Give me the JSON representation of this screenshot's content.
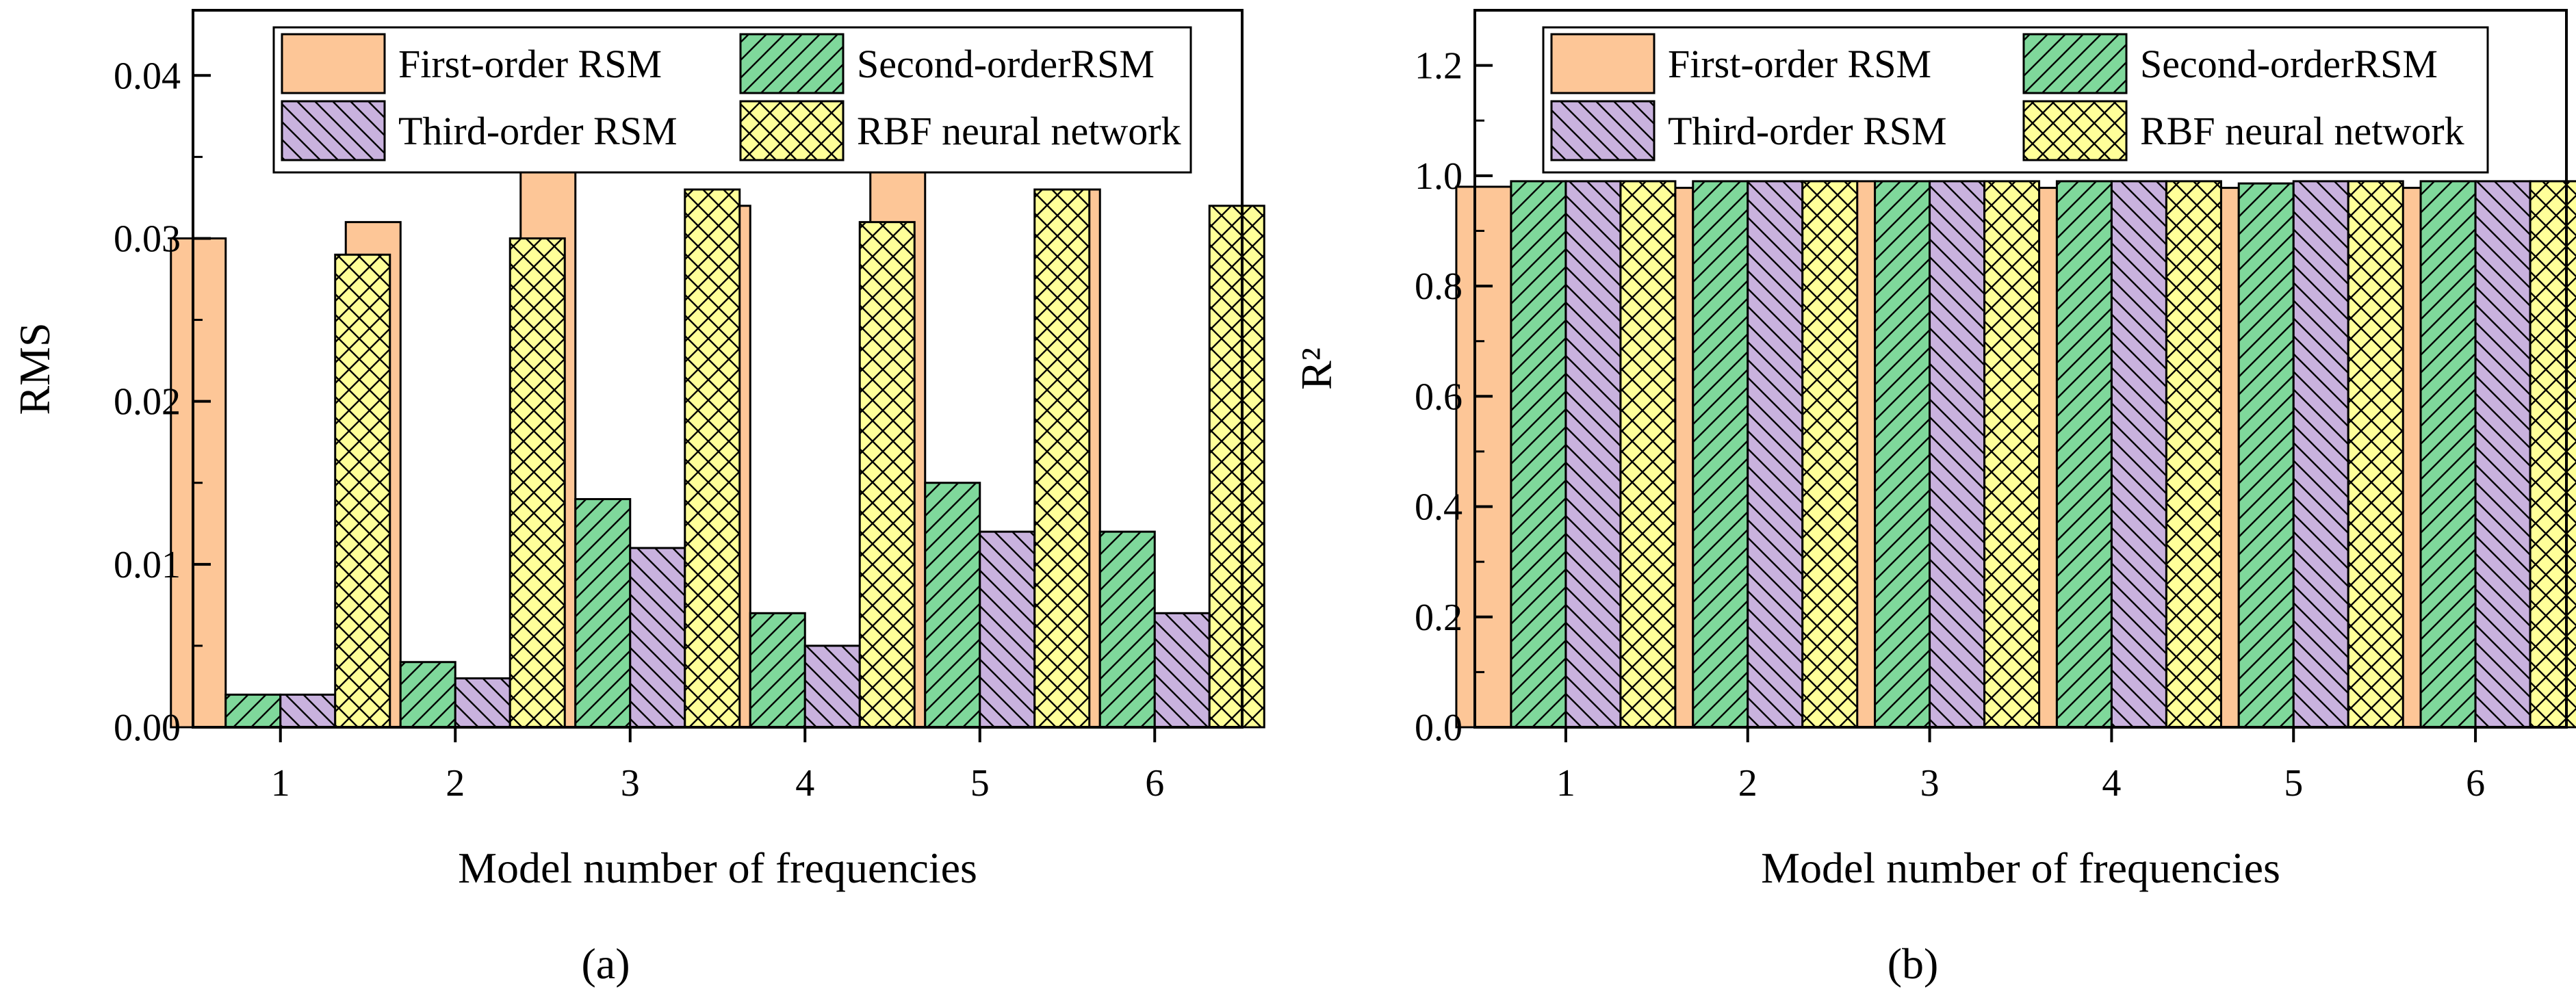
{
  "chart_data": [
    {
      "type": "bar",
      "panel": "a",
      "caption": "(a)",
      "categories": [
        "1",
        "2",
        "3",
        "4",
        "5",
        "6"
      ],
      "xlabel": "Model number of frequencies",
      "ylabel": "RMS",
      "ylim": [
        0,
        0.044
      ],
      "yticks": [
        "0.00",
        "0.01",
        "0.02",
        "0.03",
        "0.04"
      ],
      "series": [
        {
          "name": "First-order RSM",
          "color": "#FDC697",
          "pattern": "none",
          "values": [
            0.03,
            0.031,
            0.035,
            0.032,
            0.035,
            0.033
          ]
        },
        {
          "name": "Second-orderRSM",
          "color": "#7FD89B",
          "pattern": "slash",
          "values": [
            0.002,
            0.004,
            0.014,
            0.007,
            0.015,
            0.012
          ]
        },
        {
          "name": "Third-order RSM",
          "color": "#C9B2DE",
          "pattern": "backslash",
          "values": [
            0.002,
            0.003,
            0.011,
            0.005,
            0.012,
            0.007
          ]
        },
        {
          "name": "RBF neural network",
          "color": "#FFFF99",
          "pattern": "cross",
          "values": [
            0.029,
            0.03,
            0.033,
            0.031,
            0.033,
            0.032
          ]
        }
      ],
      "legend_location": "top"
    },
    {
      "type": "bar",
      "panel": "b",
      "caption": "(b)",
      "categories": [
        "1",
        "2",
        "3",
        "4",
        "5",
        "6"
      ],
      "xlabel": "Model number of frequencies",
      "ylabel": "R²",
      "ylim": [
        0,
        1.3
      ],
      "yticks": [
        "0.0",
        "0.2",
        "0.4",
        "0.6",
        "0.8",
        "1.0",
        "1.2"
      ],
      "series": [
        {
          "name": "First-order RSM",
          "color": "#FDC697",
          "pattern": "none",
          "values": [
            0.98,
            0.978,
            0.99,
            0.978,
            0.978,
            0.978
          ]
        },
        {
          "name": "Second-orderRSM",
          "color": "#7FD89B",
          "pattern": "slash",
          "values": [
            0.99,
            0.99,
            0.99,
            0.99,
            0.986,
            0.99
          ]
        },
        {
          "name": "Third-order RSM",
          "color": "#C9B2DE",
          "pattern": "backslash",
          "values": [
            0.99,
            0.99,
            0.99,
            0.99,
            0.99,
            0.99
          ]
        },
        {
          "name": "RBF neural network",
          "color": "#FFFF99",
          "pattern": "cross",
          "values": [
            0.99,
            0.99,
            0.99,
            0.99,
            0.99,
            0.99
          ]
        }
      ],
      "legend_location": "top"
    }
  ]
}
